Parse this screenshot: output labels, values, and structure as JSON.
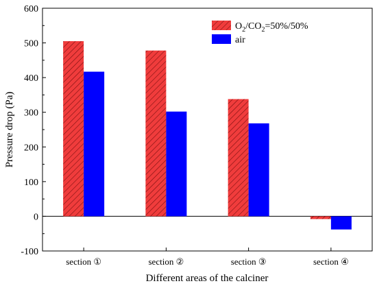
{
  "chart_data": {
    "type": "bar",
    "title": "",
    "xlabel": "Different areas of the calciner",
    "ylabel": "Pressure drop (Pa)",
    "categories": [
      "section ①",
      "section ②",
      "section ③",
      "section ④"
    ],
    "ylim": [
      -100,
      600
    ],
    "yticks": [
      -100,
      0,
      100,
      200,
      300,
      400,
      500,
      600
    ],
    "grid": false,
    "zero_line": true,
    "legend_position": "top-right",
    "series": [
      {
        "name": "O2/CO2=50%/50%",
        "legend_parts": [
          "O",
          "2",
          "/CO",
          "2",
          "=50%/50%"
        ],
        "values": [
          505,
          478,
          338,
          -8
        ],
        "color": "#f03c3c",
        "pattern": "diagonal-hatch"
      },
      {
        "name": "air",
        "values": [
          417,
          302,
          268,
          -38
        ],
        "color": "#0000ff"
      }
    ]
  }
}
